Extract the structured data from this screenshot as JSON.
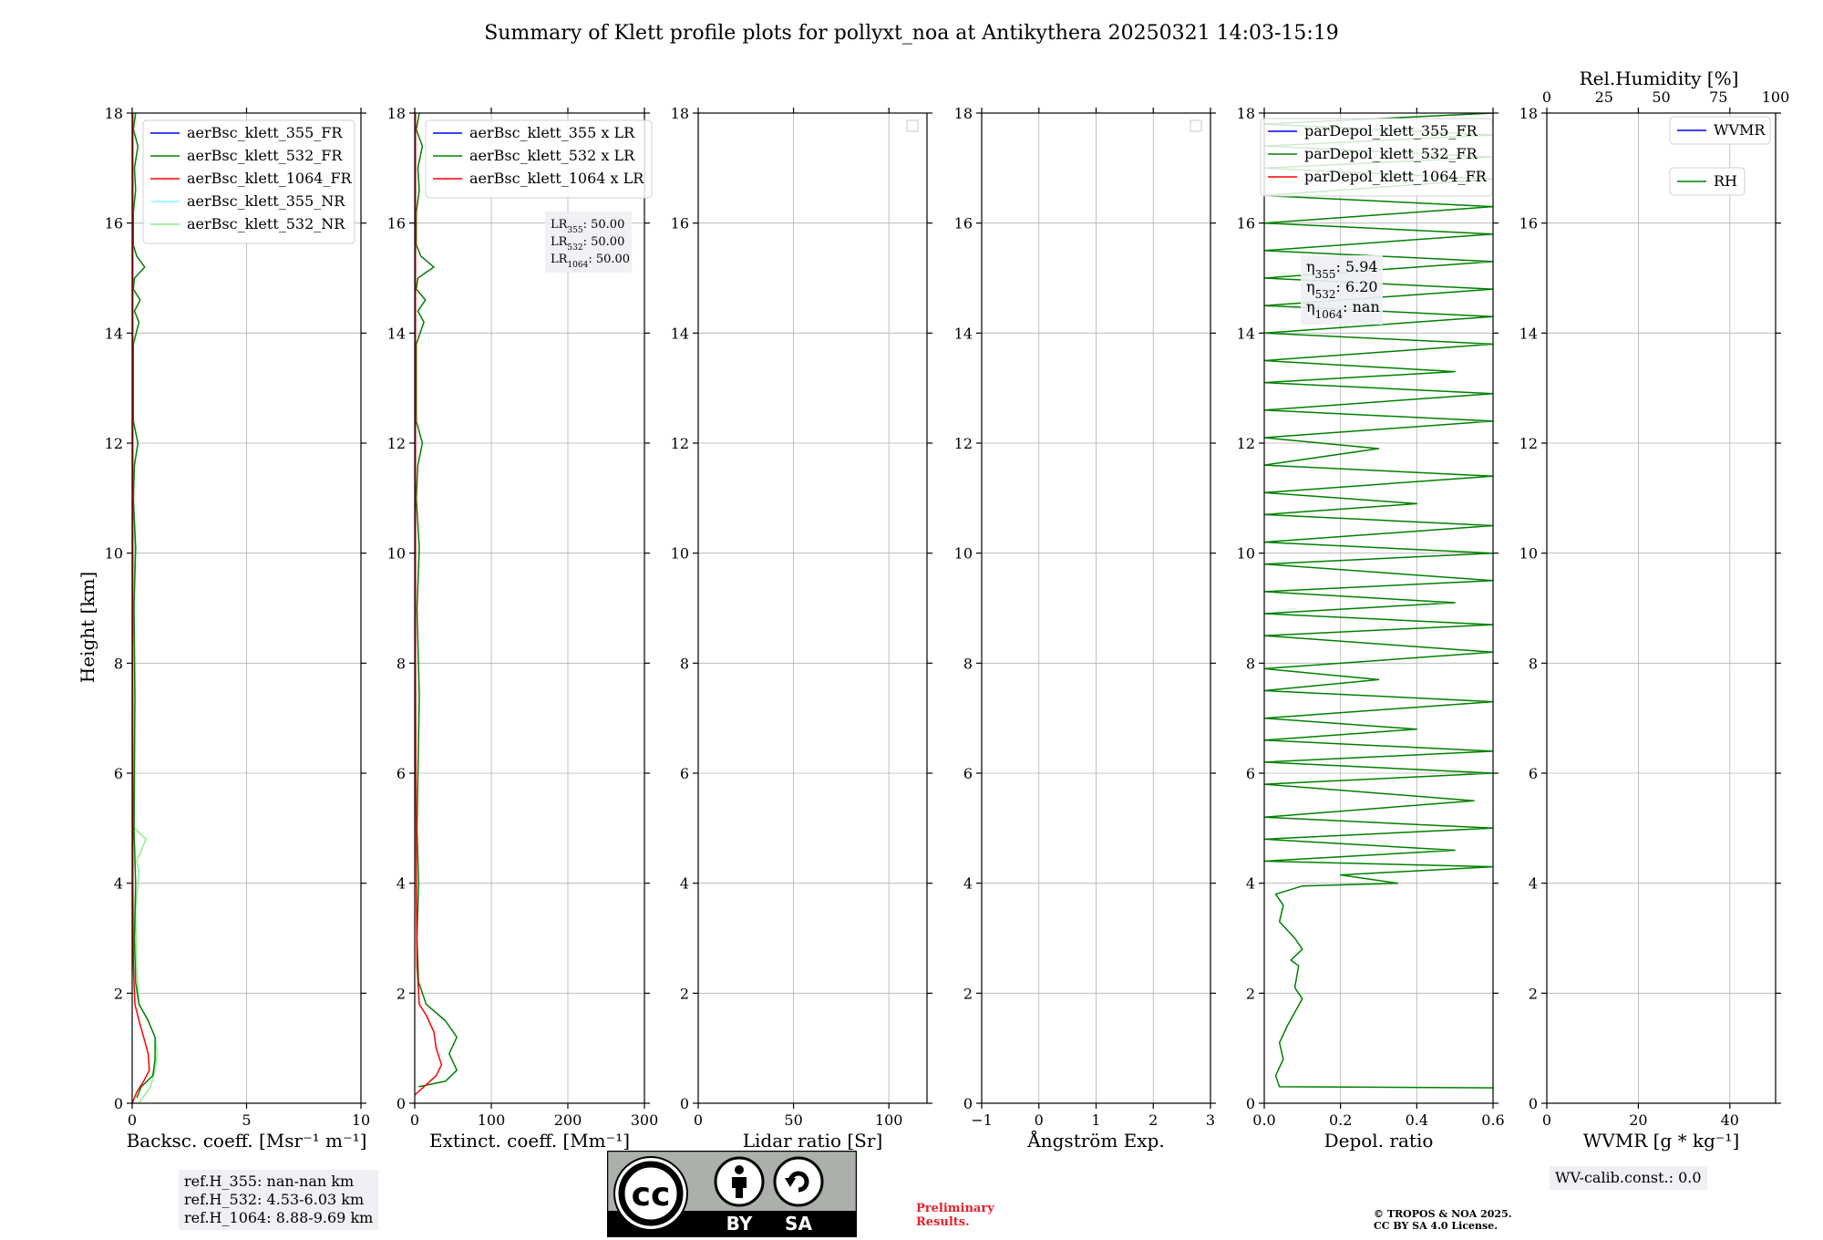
{
  "figure": {
    "title": "Summary of Klett profile plots for pollyxt_noa at Antikythera 20250321 14:03-15:19",
    "ylabel": "Height [km]"
  },
  "chart_data": [
    {
      "type": "line",
      "name": "backscatter",
      "xlabel": "Backsc. coeff. [Msr⁻¹ m⁻¹]",
      "xlim": [
        0,
        10
      ],
      "ylim": [
        0,
        18
      ],
      "xticks": [
        "0",
        "5",
        "10"
      ],
      "xtick_values": [
        0,
        5,
        10
      ],
      "yticks": [
        0,
        2,
        4,
        6,
        8,
        10,
        12,
        14,
        16,
        18
      ],
      "legend": [
        "aerBsc_klett_355_FR",
        "aerBsc_klett_532_FR",
        "aerBsc_klett_1064_FR",
        "aerBsc_klett_355_NR",
        "aerBsc_klett_532_NR"
      ],
      "series": [
        {
          "name": "aerBsc_klett_532_NR",
          "color": "#90ee90",
          "points": [
            [
              0.3,
              0
            ],
            [
              0.8,
              0.3
            ],
            [
              1.0,
              0.6
            ],
            [
              1.1,
              0.9
            ],
            [
              1.0,
              1.2
            ],
            [
              0.7,
              1.5
            ],
            [
              0.3,
              1.8
            ],
            [
              0.2,
              2.5
            ],
            [
              0.15,
              3.5
            ],
            [
              0.3,
              4.2
            ],
            [
              0.2,
              4.4
            ],
            [
              0.6,
              4.8
            ],
            [
              0.1,
              5.0
            ],
            [
              0.1,
              8
            ],
            [
              0.05,
              12
            ],
            [
              0.05,
              18
            ]
          ]
        },
        {
          "name": "aerBsc_klett_355_FR",
          "color": "#0000ff",
          "points": []
        },
        {
          "name": "aerBsc_klett_355_NR",
          "color": "#7fffff",
          "points": []
        },
        {
          "name": "aerBsc_klett_532_FR",
          "color": "#008000",
          "points": [
            [
              0.2,
              0.1
            ],
            [
              0.4,
              0.3
            ],
            [
              0.9,
              0.5
            ],
            [
              1.0,
              0.8
            ],
            [
              1.0,
              1.2
            ],
            [
              0.7,
              1.5
            ],
            [
              0.3,
              1.8
            ],
            [
              0.15,
              2.2
            ],
            [
              0.1,
              3
            ],
            [
              0.15,
              4
            ],
            [
              0.08,
              5
            ],
            [
              0.12,
              7.4
            ],
            [
              0.08,
              9
            ],
            [
              0.15,
              10.1
            ],
            [
              0.05,
              11
            ],
            [
              0.1,
              11.6
            ],
            [
              0.25,
              12
            ],
            [
              0.05,
              12.4
            ],
            [
              0.05,
              13.8
            ],
            [
              0.3,
              14.2
            ],
            [
              0.1,
              14.4
            ],
            [
              0.35,
              14.6
            ],
            [
              0.05,
              14.8
            ],
            [
              0.1,
              15.0
            ],
            [
              0.55,
              15.2
            ],
            [
              0.2,
              15.4
            ],
            [
              0.05,
              15.6
            ],
            [
              0.05,
              16.2
            ],
            [
              0.15,
              16.6
            ],
            [
              0.1,
              17.0
            ],
            [
              0.25,
              17.4
            ],
            [
              0.05,
              17.7
            ],
            [
              0.15,
              18
            ]
          ]
        },
        {
          "name": "aerBsc_klett_1064_FR",
          "color": "#ff0000",
          "points": [
            [
              0.0,
              0
            ],
            [
              0.2,
              0.2
            ],
            [
              0.5,
              0.4
            ],
            [
              0.75,
              0.6
            ],
            [
              0.7,
              0.9
            ],
            [
              0.5,
              1.2
            ],
            [
              0.3,
              1.5
            ],
            [
              0.12,
              1.8
            ],
            [
              0.05,
              2.5
            ],
            [
              0.03,
              4
            ],
            [
              0.02,
              8
            ],
            [
              0.02,
              12
            ],
            [
              0.02,
              18
            ]
          ]
        }
      ]
    },
    {
      "type": "line",
      "name": "extinction",
      "xlabel": "Extinct. coeff. [Mm⁻¹]",
      "xlim": [
        0,
        300
      ],
      "ylim": [
        0,
        18
      ],
      "xticks": [
        "0",
        "100",
        "200",
        "300"
      ],
      "xtick_values": [
        0,
        100,
        200,
        300
      ],
      "yticks": [
        0,
        2,
        4,
        6,
        8,
        10,
        12,
        14,
        16,
        18
      ],
      "legend": [
        "aerBsc_klett_355 x LR",
        "aerBsc_klett_532 x LR",
        "aerBsc_klett_1064 x LR"
      ],
      "annotation": [
        "LR355: 50.00",
        "LR532: 50.00",
        "LR1064: 50.00"
      ],
      "series": [
        {
          "name": "aerBsc_klett_355 x LR",
          "color": "#0000ff",
          "points": []
        },
        {
          "name": "aerBsc_klett_532 x LR",
          "color": "#008000",
          "points": [
            [
              5,
              0.3
            ],
            [
              40,
              0.4
            ],
            [
              55,
              0.6
            ],
            [
              45,
              0.9
            ],
            [
              55,
              1.2
            ],
            [
              40,
              1.5
            ],
            [
              15,
              1.8
            ],
            [
              5,
              2.2
            ],
            [
              3,
              3
            ],
            [
              5,
              4
            ],
            [
              3,
              5
            ],
            [
              6,
              7.4
            ],
            [
              3,
              9
            ],
            [
              6,
              10.1
            ],
            [
              2,
              11
            ],
            [
              4,
              11.6
            ],
            [
              10,
              12
            ],
            [
              2,
              12.4
            ],
            [
              2,
              13.8
            ],
            [
              12,
              14.2
            ],
            [
              4,
              14.4
            ],
            [
              14,
              14.6
            ],
            [
              2,
              14.8
            ],
            [
              4,
              15.0
            ],
            [
              25,
              15.2
            ],
            [
              8,
              15.4
            ],
            [
              2,
              15.6
            ],
            [
              2,
              16.2
            ],
            [
              6,
              16.6
            ],
            [
              4,
              17
            ],
            [
              10,
              17.4
            ],
            [
              2,
              17.7
            ],
            [
              6,
              18
            ]
          ]
        },
        {
          "name": "aerBsc_klett_1064 x LR",
          "color": "#ff0000",
          "points": [
            [
              0,
              0.15
            ],
            [
              12,
              0.3
            ],
            [
              28,
              0.5
            ],
            [
              35,
              0.7
            ],
            [
              28,
              1.0
            ],
            [
              25,
              1.3
            ],
            [
              15,
              1.6
            ],
            [
              6,
              1.8
            ],
            [
              3,
              2.5
            ],
            [
              2,
              4
            ],
            [
              1,
              8
            ],
            [
              1,
              18
            ]
          ]
        }
      ]
    },
    {
      "type": "line",
      "name": "lidar_ratio",
      "xlabel": "Lidar ratio [Sr]",
      "xlim": [
        0,
        120
      ],
      "ylim": [
        0,
        18
      ],
      "xticks": [
        "0",
        "50",
        "100"
      ],
      "xtick_values": [
        0,
        50,
        100
      ],
      "yticks": [
        0,
        2,
        4,
        6,
        8,
        10,
        12,
        14,
        16,
        18
      ],
      "series": []
    },
    {
      "type": "line",
      "name": "angstrom",
      "xlabel": "Ångström Exp.",
      "xlim": [
        -1,
        3
      ],
      "ylim": [
        0,
        18
      ],
      "xticks": [
        "−1",
        "0",
        "1",
        "2",
        "3"
      ],
      "xtick_values": [
        -1,
        0,
        1,
        2,
        3
      ],
      "yticks": [
        0,
        2,
        4,
        6,
        8,
        10,
        12,
        14,
        16,
        18
      ],
      "series": []
    },
    {
      "type": "line",
      "name": "depolarization",
      "xlabel": "Depol. ratio",
      "xlim": [
        0,
        0.6
      ],
      "ylim": [
        0,
        18
      ],
      "xticks": [
        "0.0",
        "0.2",
        "0.4",
        "0.6"
      ],
      "xtick_values": [
        0,
        0.2,
        0.4,
        0.6
      ],
      "yticks": [
        0,
        2,
        4,
        6,
        8,
        10,
        12,
        14,
        16,
        18
      ],
      "legend": [
        "parDepol_klett_355_FR",
        "parDepol_klett_532_FR",
        "parDepol_klett_1064_FR"
      ],
      "annotation": [
        "η355: 5.94",
        "η532: 6.20",
        "η1064: nan"
      ],
      "series": [
        {
          "name": "parDepol_klett_355_FR",
          "color": "#0000ff",
          "points": []
        },
        {
          "name": "parDepol_klett_532_FR",
          "color": "#008000",
          "points": [
            [
              0.6,
              0.28
            ],
            [
              0.04,
              0.3
            ],
            [
              0.03,
              0.5
            ],
            [
              0.05,
              0.8
            ],
            [
              0.04,
              1.1
            ],
            [
              0.06,
              1.4
            ],
            [
              0.1,
              1.9
            ],
            [
              0.08,
              2.1
            ],
            [
              0.09,
              2.5
            ],
            [
              0.07,
              2.6
            ],
            [
              0.1,
              2.8
            ],
            [
              0.08,
              3.0
            ],
            [
              0.04,
              3.3
            ],
            [
              0.05,
              3.6
            ],
            [
              0.03,
              3.8
            ],
            [
              0.1,
              3.95
            ],
            [
              0.35,
              4.0
            ],
            [
              0.2,
              4.15
            ],
            [
              0.6,
              4.3
            ],
            [
              0.0,
              4.4
            ],
            [
              0.5,
              4.6
            ],
            [
              0.0,
              4.8
            ],
            [
              0.6,
              5.0
            ],
            [
              0.0,
              5.2
            ],
            [
              0.55,
              5.5
            ],
            [
              0.0,
              5.8
            ],
            [
              0.6,
              6.0
            ],
            [
              0.0,
              6.2
            ],
            [
              0.6,
              6.4
            ],
            [
              0.0,
              6.6
            ],
            [
              0.4,
              6.8
            ],
            [
              0.0,
              7.0
            ],
            [
              0.6,
              7.3
            ],
            [
              0.0,
              7.5
            ],
            [
              0.3,
              7.7
            ],
            [
              0.0,
              7.9
            ],
            [
              0.6,
              8.2
            ],
            [
              0.0,
              8.5
            ],
            [
              0.6,
              8.7
            ],
            [
              0.0,
              8.9
            ],
            [
              0.5,
              9.1
            ],
            [
              0.0,
              9.3
            ],
            [
              0.6,
              9.5
            ],
            [
              0.0,
              9.8
            ],
            [
              0.6,
              10.0
            ],
            [
              0.0,
              10.2
            ],
            [
              0.6,
              10.5
            ],
            [
              0.0,
              10.7
            ],
            [
              0.4,
              10.9
            ],
            [
              0.0,
              11.1
            ],
            [
              0.6,
              11.4
            ],
            [
              0.0,
              11.6
            ],
            [
              0.3,
              11.9
            ],
            [
              0.0,
              12.1
            ],
            [
              0.6,
              12.4
            ],
            [
              0.0,
              12.6
            ],
            [
              0.6,
              12.9
            ],
            [
              0.0,
              13.1
            ],
            [
              0.5,
              13.3
            ],
            [
              0.0,
              13.5
            ],
            [
              0.6,
              13.8
            ],
            [
              0.0,
              14.0
            ],
            [
              0.6,
              14.3
            ],
            [
              0.0,
              14.5
            ],
            [
              0.6,
              14.8
            ],
            [
              0.0,
              15.0
            ],
            [
              0.6,
              15.3
            ],
            [
              0.0,
              15.5
            ],
            [
              0.6,
              15.8
            ],
            [
              0.0,
              16.0
            ],
            [
              0.6,
              16.3
            ],
            [
              0.0,
              16.5
            ],
            [
              0.6,
              16.8
            ],
            [
              0.0,
              17.0
            ],
            [
              0.6,
              17.2
            ],
            [
              0.0,
              17.4
            ],
            [
              0.6,
              17.6
            ],
            [
              0.0,
              17.8
            ],
            [
              0.6,
              18.0
            ]
          ]
        },
        {
          "name": "parDepol_klett_1064_FR",
          "color": "#ff0000",
          "points": []
        }
      ]
    },
    {
      "type": "line",
      "name": "water_vapour",
      "xlabel": "WVMR [g * kg⁻¹]",
      "top_xlabel": "Rel.Humidity [%]",
      "xlim": [
        0,
        50
      ],
      "top_xlim": [
        0,
        100
      ],
      "ylim": [
        0,
        18
      ],
      "xticks": [
        "0",
        "20",
        "40"
      ],
      "xtick_values": [
        0,
        20,
        40
      ],
      "top_xticks": [
        "0",
        "25",
        "50",
        "75",
        "100"
      ],
      "top_xtick_values": [
        0,
        25,
        50,
        75,
        100
      ],
      "yticks": [
        0,
        2,
        4,
        6,
        8,
        10,
        12,
        14,
        16,
        18
      ],
      "legend": [
        "WVMR",
        "RH"
      ],
      "series": []
    }
  ],
  "info": {
    "ref_heights": [
      "ref.H_355: nan-nan km",
      "ref.H_532: 4.53-6.03 km",
      "ref.H_1064: 8.88-9.69 km"
    ],
    "wv_calib": "WV-calib.const.: 0.0",
    "preliminary": [
      "Preliminary",
      "Results."
    ],
    "copyright": [
      "© TROPOS & NOA 2025.",
      "CC BY SA 4.0 License."
    ],
    "license_badge": {
      "by": "BY",
      "sa": "SA",
      "cc": "cc"
    }
  }
}
